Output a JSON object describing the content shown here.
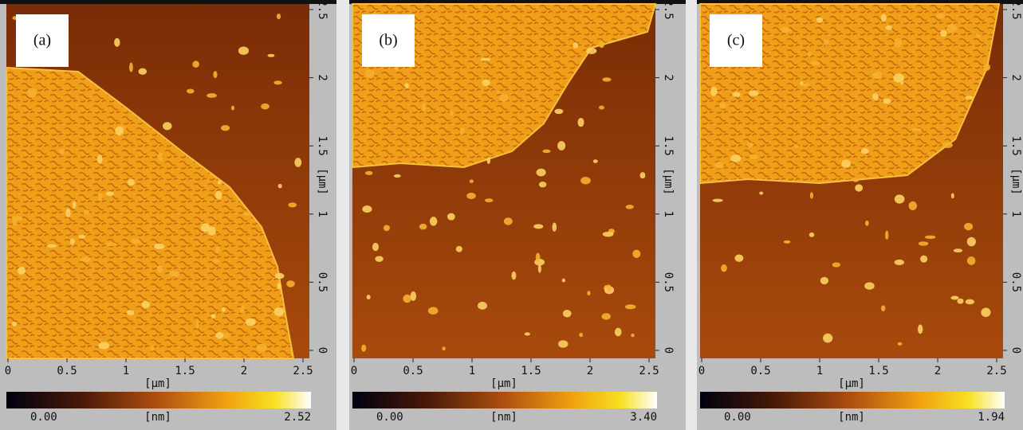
{
  "panels": [
    {
      "label": "(a)",
      "x_ticks": [
        "0",
        "0.5",
        "1",
        "1.5",
        "2",
        "2.5"
      ],
      "x_unit": "[µm]",
      "y_ticks": [
        "0",
        "0.5",
        "1",
        "1.5",
        "2",
        "2.5"
      ],
      "y_unit": "[µm]",
      "colorbar": {
        "min": "0.00",
        "unit": "[nm]",
        "max": "2.52"
      }
    },
    {
      "label": "(b)",
      "x_ticks": [
        "0",
        "0.5",
        "1",
        "1.5",
        "2",
        "2.5"
      ],
      "x_unit": "[µm]",
      "y_ticks": [
        "0",
        "0.5",
        "1",
        "1.5",
        "2",
        "2.5"
      ],
      "y_unit": "[µm]",
      "colorbar": {
        "min": "0.00",
        "unit": "[nm]",
        "max": "3.40"
      }
    },
    {
      "label": "(c)",
      "x_ticks": [
        "0",
        "0.5",
        "1",
        "1.5",
        "2",
        "2.5"
      ],
      "x_unit": "[µm]",
      "y_ticks": [
        "0",
        "0.5",
        "1",
        "1.5",
        "2",
        "2.5"
      ],
      "y_unit": "[µm]",
      "colorbar": {
        "min": "0.00",
        "unit": "[nm]",
        "max": "1.94"
      }
    }
  ]
}
